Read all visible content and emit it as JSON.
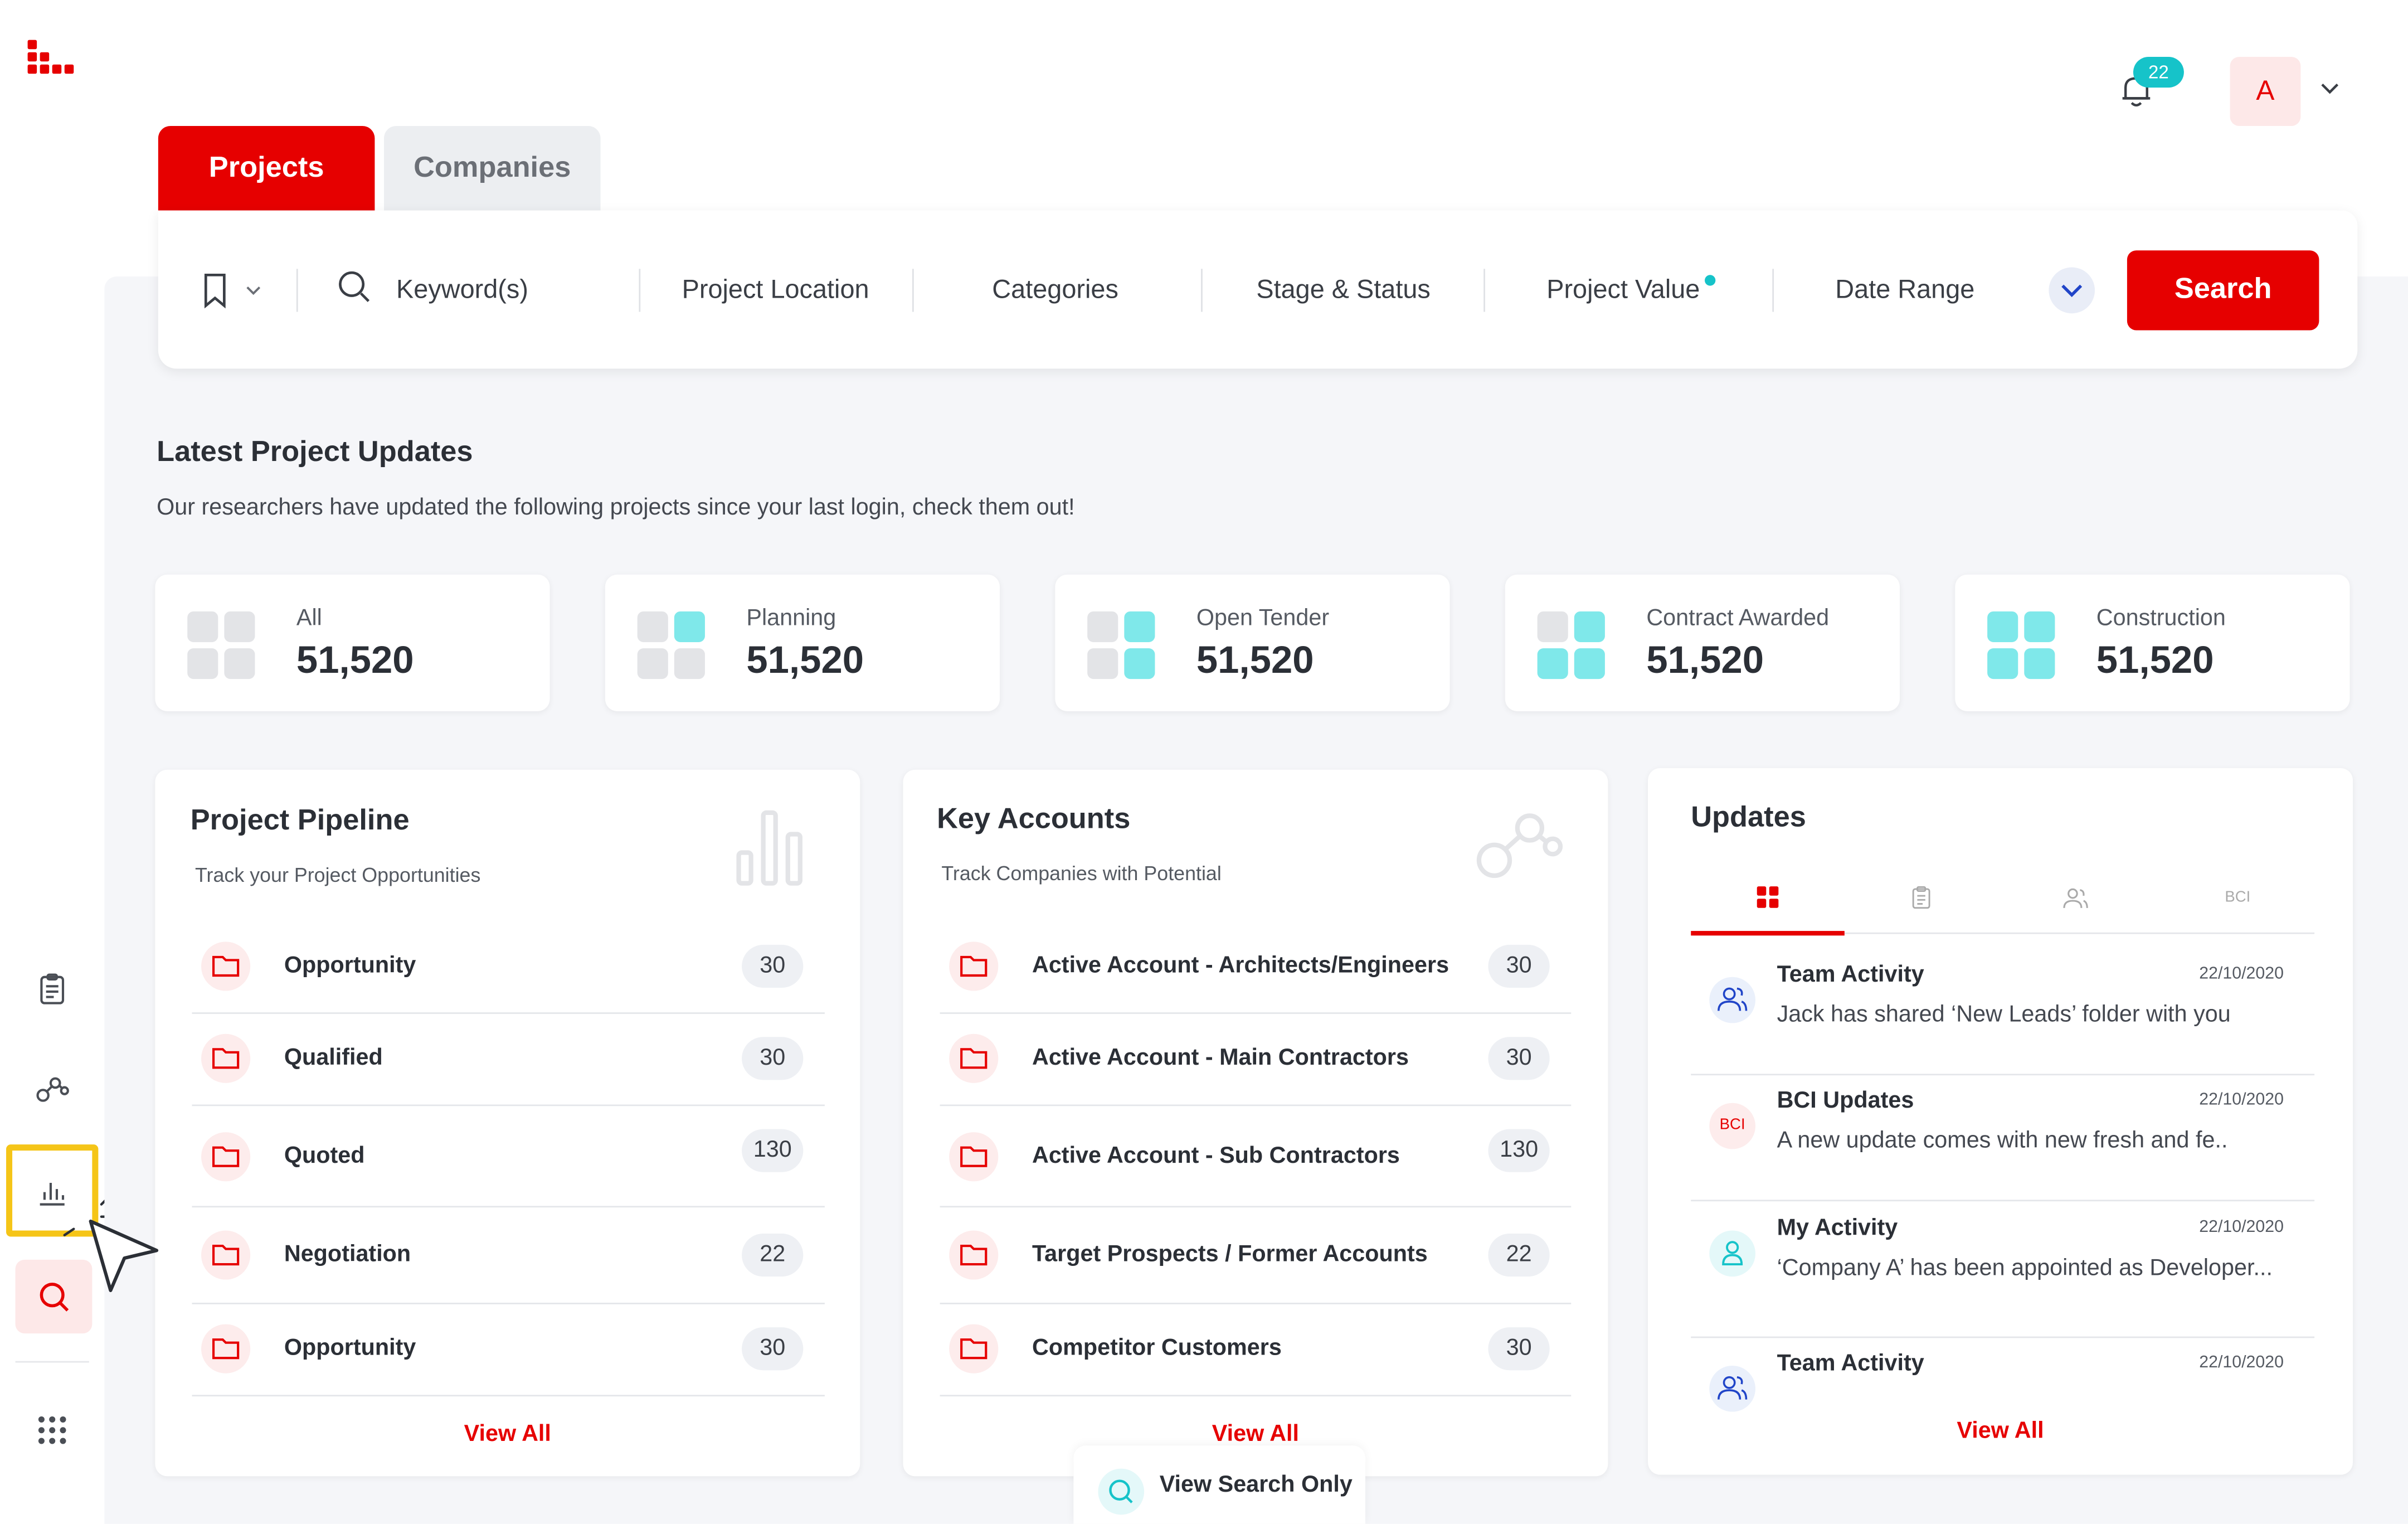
{
  "header": {
    "notification_count": "22",
    "avatar_letter": "A"
  },
  "tabs": [
    {
      "label": "Projects",
      "active": true
    },
    {
      "label": "Companies",
      "active": false
    }
  ],
  "search_bar": {
    "keyword_placeholder": "Keyword(s)",
    "filters": [
      "Project Location",
      "Categories",
      "Stage & Status",
      "Project Value",
      "Date Range"
    ],
    "search_button": "Search"
  },
  "latest": {
    "title": "Latest Project Updates",
    "subtitle": "Our researchers have updated the following projects since your last login, check them out!"
  },
  "stats": [
    {
      "label": "All",
      "value": "51,520"
    },
    {
      "label": "Planning",
      "value": "51,520"
    },
    {
      "label": "Open Tender",
      "value": "51,520"
    },
    {
      "label": "Contract Awarded",
      "value": "51,520"
    },
    {
      "label": "Construction",
      "value": "51,520"
    }
  ],
  "pipeline": {
    "title": "Project Pipeline",
    "subtitle": "Track your Project Opportunities",
    "rows": [
      {
        "label": "Opportunity",
        "count": "30"
      },
      {
        "label": "Qualified",
        "count": "30"
      },
      {
        "label": "Quoted",
        "count": "130"
      },
      {
        "label": "Negotiation",
        "count": "22"
      },
      {
        "label": "Opportunity",
        "count": "30"
      }
    ],
    "view_all": "View All"
  },
  "accounts": {
    "title": "Key Accounts",
    "subtitle": "Track Companies with Potential",
    "rows": [
      {
        "label": "Active Account - Architects/Engineers",
        "count": "30"
      },
      {
        "label": "Active Account - Main Contractors",
        "count": "30"
      },
      {
        "label": "Active Account - Sub Contractors",
        "count": "130"
      },
      {
        "label": "Target Prospects / Former Accounts",
        "count": "22"
      },
      {
        "label": "Competitor Customers",
        "count": "30"
      }
    ],
    "view_all": "View All"
  },
  "updates": {
    "title": "Updates",
    "tab_bci": "BCI",
    "items": [
      {
        "title": "Team Activity",
        "date": "22/10/2020",
        "text": "Jack has shared ‘New Leads’ folder with you"
      },
      {
        "title": "BCI Updates",
        "date": "22/10/2020",
        "text": "A new update comes with new fresh and  fe.."
      },
      {
        "title": "My Activity",
        "date": "22/10/2020",
        "text": "‘Company A’ has been appointed as Developer..."
      },
      {
        "title": "Team Activity",
        "date": "22/10/2020",
        "text": ""
      }
    ],
    "bci_badge": "BCI",
    "view_all": "View All"
  },
  "view_search_only": "View Search Only",
  "colors": {
    "brand": "#e60000",
    "accent": "#16c3c9",
    "background": "#f5f6f9"
  }
}
